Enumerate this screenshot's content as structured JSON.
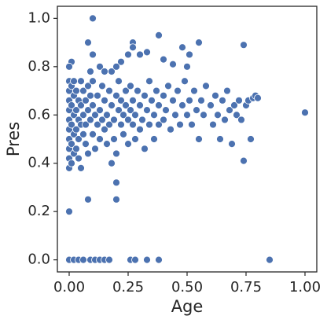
{
  "chart_data": {
    "type": "scatter",
    "x_label": "Age",
    "y_label": "Pres",
    "color": "#4c72b0",
    "xlim": [
      -0.05,
      1.05
    ],
    "ylim": [
      -0.05,
      1.05
    ],
    "xticks": [
      {
        "value": 0,
        "label": "0.00"
      },
      {
        "value": 0.25,
        "label": "0.25"
      },
      {
        "value": 0.5,
        "label": "0.50"
      },
      {
        "value": 0.75,
        "label": "0.75"
      },
      {
        "value": 1,
        "label": "1.00"
      }
    ],
    "yticks": [
      {
        "value": 0,
        "label": "0.0"
      },
      {
        "value": 0.2,
        "label": "0.2"
      },
      {
        "value": 0.4,
        "label": "0.4"
      },
      {
        "value": 0.6,
        "label": "0.6"
      },
      {
        "value": 0.8,
        "label": "0.8"
      },
      {
        "value": 1,
        "label": "1.0"
      }
    ],
    "x": [
      0.0,
      0.02,
      0.04,
      0.06,
      0.09,
      0.11,
      0.13,
      0.15,
      0.17,
      0.26,
      0.28,
      0.33,
      0.38,
      0.85,
      0,
      0.08,
      0.2,
      0.2,
      0.1,
      0.08,
      0.27,
      0.27,
      0.38,
      0.55,
      0.74,
      1.0,
      0.01,
      0.0,
      0.13,
      0.22,
      0.33,
      0.4,
      0.44,
      0.5,
      0.48,
      0.51,
      0.3,
      0.1,
      0.09,
      0.15,
      0.18,
      0.2,
      0.25,
      0,
      0,
      0,
      0,
      0,
      0,
      0,
      0,
      0,
      0,
      0.01,
      0.01,
      0.01,
      0.01,
      0.01,
      0.02,
      0.02,
      0.02,
      0.02,
      0.02,
      0.03,
      0.03,
      0.03,
      0.03,
      0.04,
      0.04,
      0.04,
      0.04,
      0.05,
      0.05,
      0.05,
      0.05,
      0.06,
      0.06,
      0.06,
      0.07,
      0.07,
      0.07,
      0.08,
      0.08,
      0.08,
      0.09,
      0.09,
      0.1,
      0.1,
      0.1,
      0.11,
      0.11,
      0.12,
      0.12,
      0.13,
      0.13,
      0.14,
      0.14,
      0.15,
      0.15,
      0.16,
      0.16,
      0.17,
      0.17,
      0.18,
      0.18,
      0.19,
      0.19,
      0.2,
      0.2,
      0.21,
      0.21,
      0.22,
      0.22,
      0.23,
      0.23,
      0.24,
      0.24,
      0.25,
      0.25,
      0.26,
      0.26,
      0.27,
      0.27,
      0.28,
      0.28,
      0.29,
      0.3,
      0.3,
      0.31,
      0.32,
      0.32,
      0.33,
      0.34,
      0.34,
      0.35,
      0.36,
      0.36,
      0.37,
      0.38,
      0.38,
      0.4,
      0.4,
      0.41,
      0.42,
      0.43,
      0.44,
      0.45,
      0.46,
      0.47,
      0.48,
      0.49,
      0.5,
      0.51,
      0.52,
      0.53,
      0.54,
      0.55,
      0.56,
      0.57,
      0.58,
      0.6,
      0.61,
      0.62,
      0.63,
      0.64,
      0.65,
      0.66,
      0.67,
      0.68,
      0.69,
      0.7,
      0.71,
      0.72,
      0.73,
      0.74,
      0.75,
      0.76,
      0.77,
      0.78,
      0.79,
      0.8
    ],
    "y": [
      0,
      0,
      0,
      0,
      0,
      0,
      0,
      0,
      0,
      0,
      0,
      0,
      0,
      0,
      0.2,
      0.25,
      0.25,
      0.32,
      1.0,
      0.9,
      0.9,
      0.88,
      0.93,
      0.9,
      0.89,
      0.61,
      0.82,
      0.8,
      0.8,
      0.82,
      0.86,
      0.83,
      0.81,
      0.8,
      0.88,
      0.85,
      0.85,
      0.85,
      0.78,
      0.78,
      0.78,
      0.8,
      0.85,
      0.74,
      0.7,
      0.66,
      0.62,
      0.58,
      0.54,
      0.5,
      0.46,
      0.42,
      0.38,
      0.72,
      0.64,
      0.56,
      0.48,
      0.4,
      0.74,
      0.68,
      0.6,
      0.52,
      0.44,
      0.7,
      0.62,
      0.54,
      0.46,
      0.66,
      0.58,
      0.5,
      0.42,
      0.74,
      0.64,
      0.56,
      0.38,
      0.7,
      0.6,
      0.52,
      0.66,
      0.48,
      0.56,
      0.62,
      0.72,
      0.44,
      0.58,
      0.68,
      0.64,
      0.52,
      0.74,
      0.6,
      0.46,
      0.68,
      0.56,
      0.62,
      0.5,
      0.72,
      0.58,
      0.66,
      0.54,
      0.6,
      0.48,
      0.7,
      0.56,
      0.64,
      0.4,
      0.58,
      0.5,
      0.68,
      0.44,
      0.62,
      0.74,
      0.56,
      0.66,
      0.6,
      0.52,
      0.7,
      0.64,
      0.58,
      0.48,
      0.72,
      0.62,
      0.56,
      0.66,
      0.6,
      0.5,
      0.7,
      0.64,
      0.54,
      0.58,
      0.68,
      0.46,
      0.62,
      0.74,
      0.56,
      0.66,
      0.6,
      0.5,
      0.7,
      0.64,
      0.56,
      0.68,
      0.58,
      0.62,
      0.72,
      0.54,
      0.66,
      0.6,
      0.7,
      0.56,
      0.64,
      0.74,
      0.6,
      0.66,
      0.56,
      0.7,
      0.62,
      0.5,
      0.66,
      0.6,
      0.72,
      0.64,
      0.56,
      0.68,
      0.6,
      0.5,
      0.66,
      0.58,
      0.7,
      0.62,
      0.48,
      0.64,
      0.6,
      0.66,
      0.58,
      0.41,
      0.64,
      0.66,
      0.5,
      0.67,
      0.68,
      0.67
    ]
  }
}
